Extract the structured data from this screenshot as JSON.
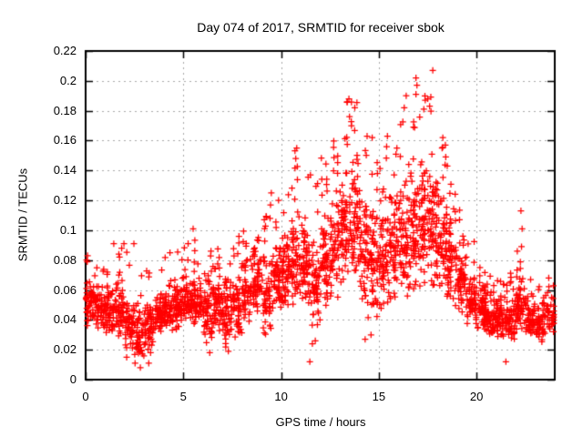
{
  "chart_data": {
    "type": "scatter",
    "title": "Day 074 of 2017, SRMTID for receiver sbok",
    "xlabel": "GPS time / hours",
    "ylabel": "SRMTID / TECUs",
    "xlim": [
      0,
      24
    ],
    "ylim": [
      0,
      0.22
    ],
    "xticks": {
      "values": [
        0,
        5,
        10,
        15,
        20
      ],
      "labels": [
        "0",
        "5",
        "10",
        "15",
        "20"
      ]
    },
    "yticks": {
      "values": [
        0,
        0.02,
        0.04,
        0.06,
        0.08,
        0.1,
        0.12,
        0.14,
        0.16,
        0.18,
        0.2,
        0.22
      ],
      "labels": [
        "0",
        "0.02",
        "0.04",
        "0.06",
        "0.08",
        "0.1",
        "0.12",
        "0.14",
        "0.16",
        "0.18",
        "0.2",
        "0.22"
      ]
    },
    "grid": true,
    "legend": false,
    "marker": {
      "symbol": "plus",
      "color": "#ff0000",
      "size": 7
    },
    "grid_color": "#a9a9a9",
    "axis_color": "#000000",
    "series_name": "SRMTID",
    "points_source": {
      "seed": 74,
      "bin_format": [
        "hour_start",
        "band_low",
        "band_high",
        "spike_peak",
        "count"
      ],
      "bins": [
        [
          0.0,
          0.032,
          0.075,
          0.082,
          55
        ],
        [
          0.5,
          0.03,
          0.068,
          0.078,
          52
        ],
        [
          1.0,
          0.028,
          0.07,
          0.085,
          52
        ],
        [
          1.5,
          0.026,
          0.078,
          0.09,
          55
        ],
        [
          2.0,
          0.015,
          0.062,
          0.088,
          52
        ],
        [
          2.5,
          0.013,
          0.06,
          0.078,
          50
        ],
        [
          3.0,
          0.014,
          0.065,
          0.08,
          52
        ],
        [
          3.5,
          0.028,
          0.065,
          0.078,
          52
        ],
        [
          4.0,
          0.03,
          0.07,
          0.086,
          55
        ],
        [
          4.5,
          0.03,
          0.075,
          0.089,
          55
        ],
        [
          5.0,
          0.034,
          0.08,
          0.098,
          55
        ],
        [
          5.5,
          0.034,
          0.078,
          0.094,
          55
        ],
        [
          6.0,
          0.02,
          0.078,
          0.09,
          55
        ],
        [
          6.5,
          0.028,
          0.082,
          0.094,
          55
        ],
        [
          7.0,
          0.018,
          0.083,
          0.093,
          55
        ],
        [
          7.5,
          0.022,
          0.088,
          0.096,
          55
        ],
        [
          8.0,
          0.035,
          0.09,
          0.1,
          55
        ],
        [
          8.5,
          0.038,
          0.095,
          0.104,
          55
        ],
        [
          9.0,
          0.026,
          0.1,
          0.112,
          55
        ],
        [
          9.5,
          0.04,
          0.105,
          0.125,
          57
        ],
        [
          10.0,
          0.045,
          0.115,
          0.132,
          58
        ],
        [
          10.5,
          0.045,
          0.12,
          0.156,
          58
        ],
        [
          11.0,
          0.038,
          0.125,
          0.138,
          58
        ],
        [
          11.5,
          0.026,
          0.11,
          0.134,
          55
        ],
        [
          12.0,
          0.045,
          0.13,
          0.15,
          58
        ],
        [
          12.5,
          0.05,
          0.145,
          0.166,
          60
        ],
        [
          13.0,
          0.055,
          0.16,
          0.187,
          62
        ],
        [
          13.5,
          0.058,
          0.165,
          0.186,
          62
        ],
        [
          14.0,
          0.032,
          0.15,
          0.162,
          60
        ],
        [
          14.5,
          0.032,
          0.14,
          0.161,
          58
        ],
        [
          15.0,
          0.038,
          0.145,
          0.162,
          58
        ],
        [
          15.5,
          0.045,
          0.14,
          0.16,
          58
        ],
        [
          16.0,
          0.048,
          0.155,
          0.189,
          62
        ],
        [
          16.5,
          0.05,
          0.165,
          0.2,
          62
        ],
        [
          17.0,
          0.055,
          0.17,
          0.19,
          62
        ],
        [
          17.5,
          0.055,
          0.175,
          0.205,
          64
        ],
        [
          18.0,
          0.05,
          0.145,
          0.164,
          58
        ],
        [
          18.5,
          0.042,
          0.125,
          0.142,
          55
        ],
        [
          19.0,
          0.038,
          0.095,
          0.118,
          55
        ],
        [
          19.5,
          0.034,
          0.08,
          0.1,
          55
        ],
        [
          20.0,
          0.03,
          0.07,
          0.08,
          55
        ],
        [
          20.5,
          0.028,
          0.065,
          0.075,
          55
        ],
        [
          21.0,
          0.026,
          0.06,
          0.07,
          52
        ],
        [
          21.5,
          0.024,
          0.062,
          0.075,
          52
        ],
        [
          22.0,
          0.03,
          0.075,
          0.098,
          55
        ],
        [
          22.5,
          0.024,
          0.062,
          0.08,
          52
        ],
        [
          23.0,
          0.022,
          0.058,
          0.07,
          50
        ],
        [
          23.5,
          0.028,
          0.062,
          0.078,
          42
        ]
      ],
      "outliers": [
        [
          0.05,
          0.08
        ],
        [
          0.1,
          0.083
        ],
        [
          1.44,
          0.091
        ],
        [
          1.7,
          0.084
        ],
        [
          1.96,
          0.091
        ],
        [
          2.1,
          0.015
        ],
        [
          2.47,
          0.091
        ],
        [
          2.53,
          0.011
        ],
        [
          2.8,
          0.008
        ],
        [
          3.23,
          0.011
        ],
        [
          5.5,
          0.101
        ],
        [
          6.35,
          0.018
        ],
        [
          7.3,
          0.019
        ],
        [
          9.46,
          0.117
        ],
        [
          9.5,
          0.125
        ],
        [
          10.75,
          0.148
        ],
        [
          10.8,
          0.155
        ],
        [
          11.47,
          0.012
        ],
        [
          11.5,
          0.137
        ],
        [
          11.6,
          0.024
        ],
        [
          11.75,
          0.026
        ],
        [
          13.47,
          0.188
        ],
        [
          13.5,
          0.176
        ],
        [
          13.6,
          0.17
        ],
        [
          13.77,
          0.182
        ],
        [
          14.3,
          0.027
        ],
        [
          14.4,
          0.163
        ],
        [
          14.6,
          0.03
        ],
        [
          14.66,
          0.162
        ],
        [
          15.4,
          0.156
        ],
        [
          15.44,
          0.163
        ],
        [
          16.3,
          0.182
        ],
        [
          16.4,
          0.19
        ],
        [
          16.9,
          0.202
        ],
        [
          16.9,
          0.191
        ],
        [
          16.95,
          0.197
        ],
        [
          17.5,
          0.188
        ],
        [
          17.6,
          0.183
        ],
        [
          17.76,
          0.207
        ],
        [
          18.5,
          0.143
        ],
        [
          19.3,
          0.096
        ],
        [
          21.5,
          0.012
        ],
        [
          22.27,
          0.113
        ],
        [
          22.3,
          0.089
        ],
        [
          22.33,
          0.101
        ]
      ]
    }
  }
}
